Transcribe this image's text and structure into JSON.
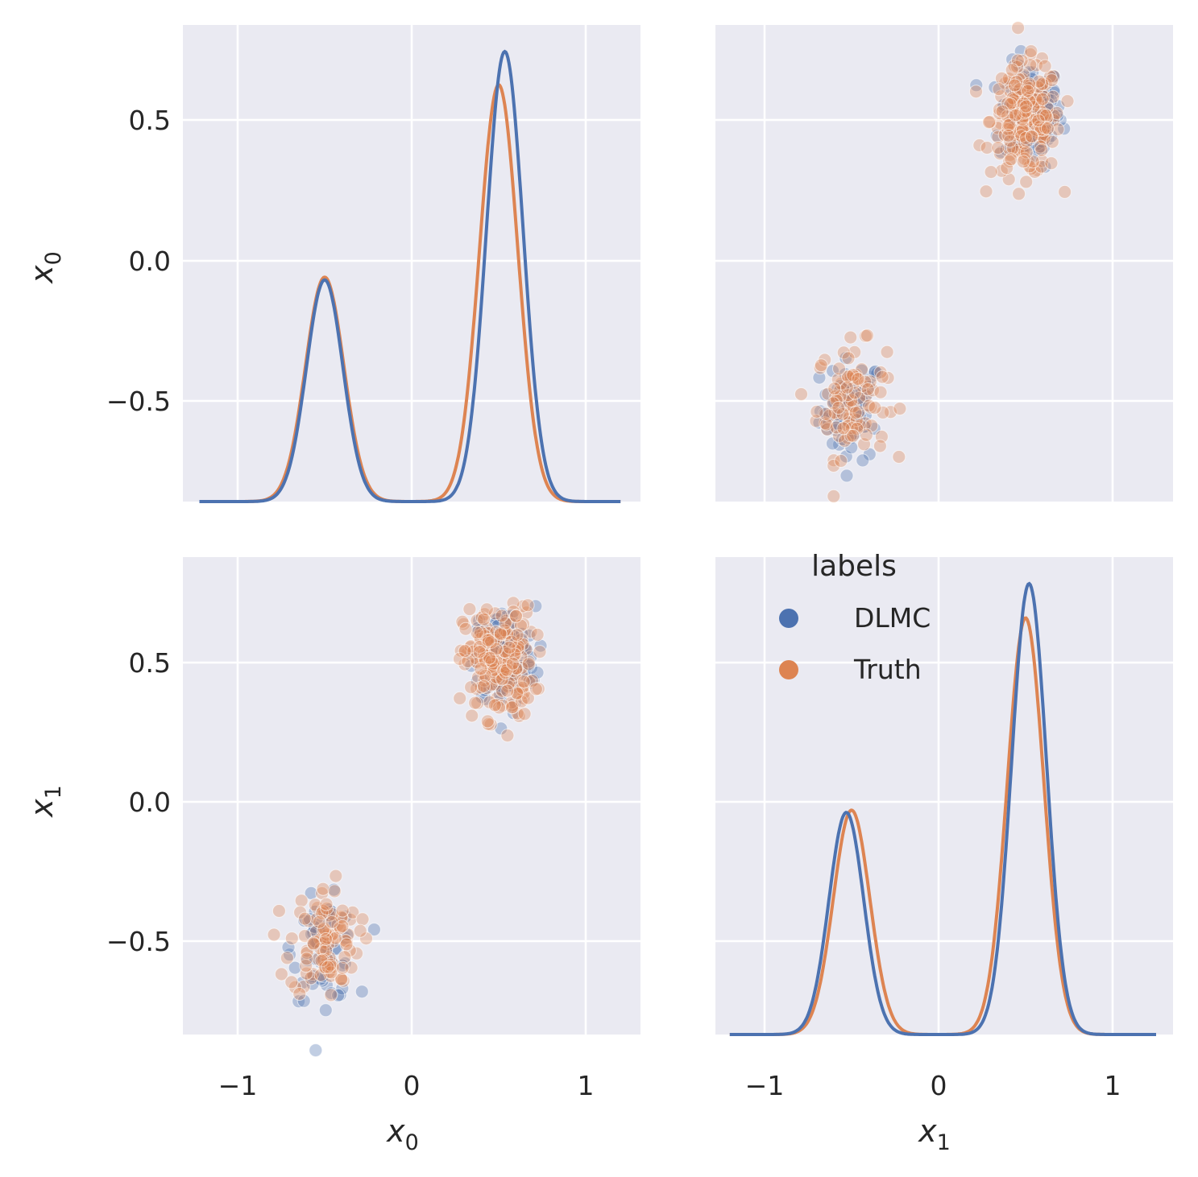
{
  "colors": {
    "DLMC": "#4c72b0",
    "Truth": "#dd8452",
    "panel_background": "#eaeaf2",
    "grid": "#ffffff",
    "text": "#262626"
  },
  "legend": {
    "title": "labels",
    "items": [
      {
        "label": "DLMC",
        "color": "#4c72b0"
      },
      {
        "label": "Truth",
        "color": "#dd8452"
      }
    ],
    "placement": "upper-left of bottom-right panel"
  },
  "axes": {
    "x_var0": {
      "symbol": "x",
      "subscript": "0"
    },
    "x_var1": {
      "symbol": "x",
      "subscript": "1"
    },
    "y_var0": {
      "symbol": "x",
      "subscript": "0"
    },
    "y_var1": {
      "symbol": "x",
      "subscript": "1"
    },
    "x_ticks": [
      {
        "value": -1,
        "label": "−1"
      },
      {
        "value": 0,
        "label": "0"
      },
      {
        "value": 1,
        "label": "1"
      }
    ],
    "y_ticks": [
      {
        "value": 0.5,
        "label": "0.5"
      },
      {
        "value": 0.0,
        "label": "0.0"
      },
      {
        "value": -0.5,
        "label": "−0.5"
      }
    ]
  },
  "chart_data": [
    {
      "type": "line",
      "panel": "row0-col0",
      "description_of_axes": "diagonal KDE of x0",
      "xlim": [
        -1.32,
        1.32
      ],
      "series": [
        {
          "name": "DLMC",
          "kde_components": [
            {
              "weight": 0.33,
              "mean": -0.5,
              "sd": 0.105
            },
            {
              "weight": 0.67,
              "mean": 0.535,
              "sd": 0.105
            }
          ],
          "x_range": [
            -1.22,
            1.2
          ]
        },
        {
          "name": "Truth",
          "kde_components": [
            {
              "weight": 0.35,
              "mean": -0.5,
              "sd": 0.11
            },
            {
              "weight": 0.65,
              "mean": 0.5,
              "sd": 0.11
            }
          ],
          "x_range": [
            -1.22,
            1.2
          ]
        }
      ]
    },
    {
      "type": "scatter",
      "panel": "row0-col1",
      "x_variable": "x1",
      "y_variable": "x0",
      "xlim": [
        -1.32,
        1.35
      ],
      "ylim": [
        -0.855,
        0.84
      ],
      "series": [
        {
          "name": "DLMC",
          "clusters": [
            {
              "center": [
                -0.5,
                -0.53
              ],
              "spread": [
                0.09,
                0.09
              ],
              "n": 60
            },
            {
              "center": [
                0.53,
                0.52
              ],
              "spread": [
                0.09,
                0.09
              ],
              "n": 120
            }
          ]
        },
        {
          "name": "Truth",
          "clusters": [
            {
              "center": [
                -0.5,
                -0.5
              ],
              "spread": [
                0.1,
                0.1
              ],
              "n": 100
            },
            {
              "center": [
                0.5,
                0.5
              ],
              "spread": [
                0.1,
                0.1
              ],
              "n": 200
            }
          ]
        }
      ]
    },
    {
      "type": "scatter",
      "panel": "row1-col0",
      "x_variable": "x0",
      "y_variable": "x1",
      "xlim": [
        -1.32,
        1.32
      ],
      "ylim": [
        -0.855,
        0.84
      ],
      "series": [
        {
          "name": "DLMC",
          "clusters": [
            {
              "center": [
                -0.5,
                -0.53
              ],
              "spread": [
                0.09,
                0.09
              ],
              "n": 60
            },
            {
              "center": [
                0.53,
                0.52
              ],
              "spread": [
                0.09,
                0.09
              ],
              "n": 120
            }
          ]
        },
        {
          "name": "Truth",
          "clusters": [
            {
              "center": [
                -0.5,
                -0.5
              ],
              "spread": [
                0.1,
                0.1
              ],
              "n": 100
            },
            {
              "center": [
                0.5,
                0.5
              ],
              "spread": [
                0.1,
                0.1
              ],
              "n": 200
            }
          ]
        }
      ]
    },
    {
      "type": "line",
      "panel": "row1-col1",
      "description_of_axes": "diagonal KDE of x1",
      "xlim": [
        -1.32,
        1.35
      ],
      "series": [
        {
          "name": "DLMC",
          "kde_components": [
            {
              "weight": 0.33,
              "mean": -0.53,
              "sd": 0.1
            },
            {
              "weight": 0.67,
              "mean": 0.52,
              "sd": 0.1
            }
          ],
          "x_range": [
            -1.2,
            1.25
          ]
        },
        {
          "name": "Truth",
          "kde_components": [
            {
              "weight": 0.35,
              "mean": -0.5,
              "sd": 0.105
            },
            {
              "weight": 0.65,
              "mean": 0.5,
              "sd": 0.105
            }
          ],
          "x_range": [
            -1.2,
            1.25
          ]
        }
      ]
    }
  ]
}
